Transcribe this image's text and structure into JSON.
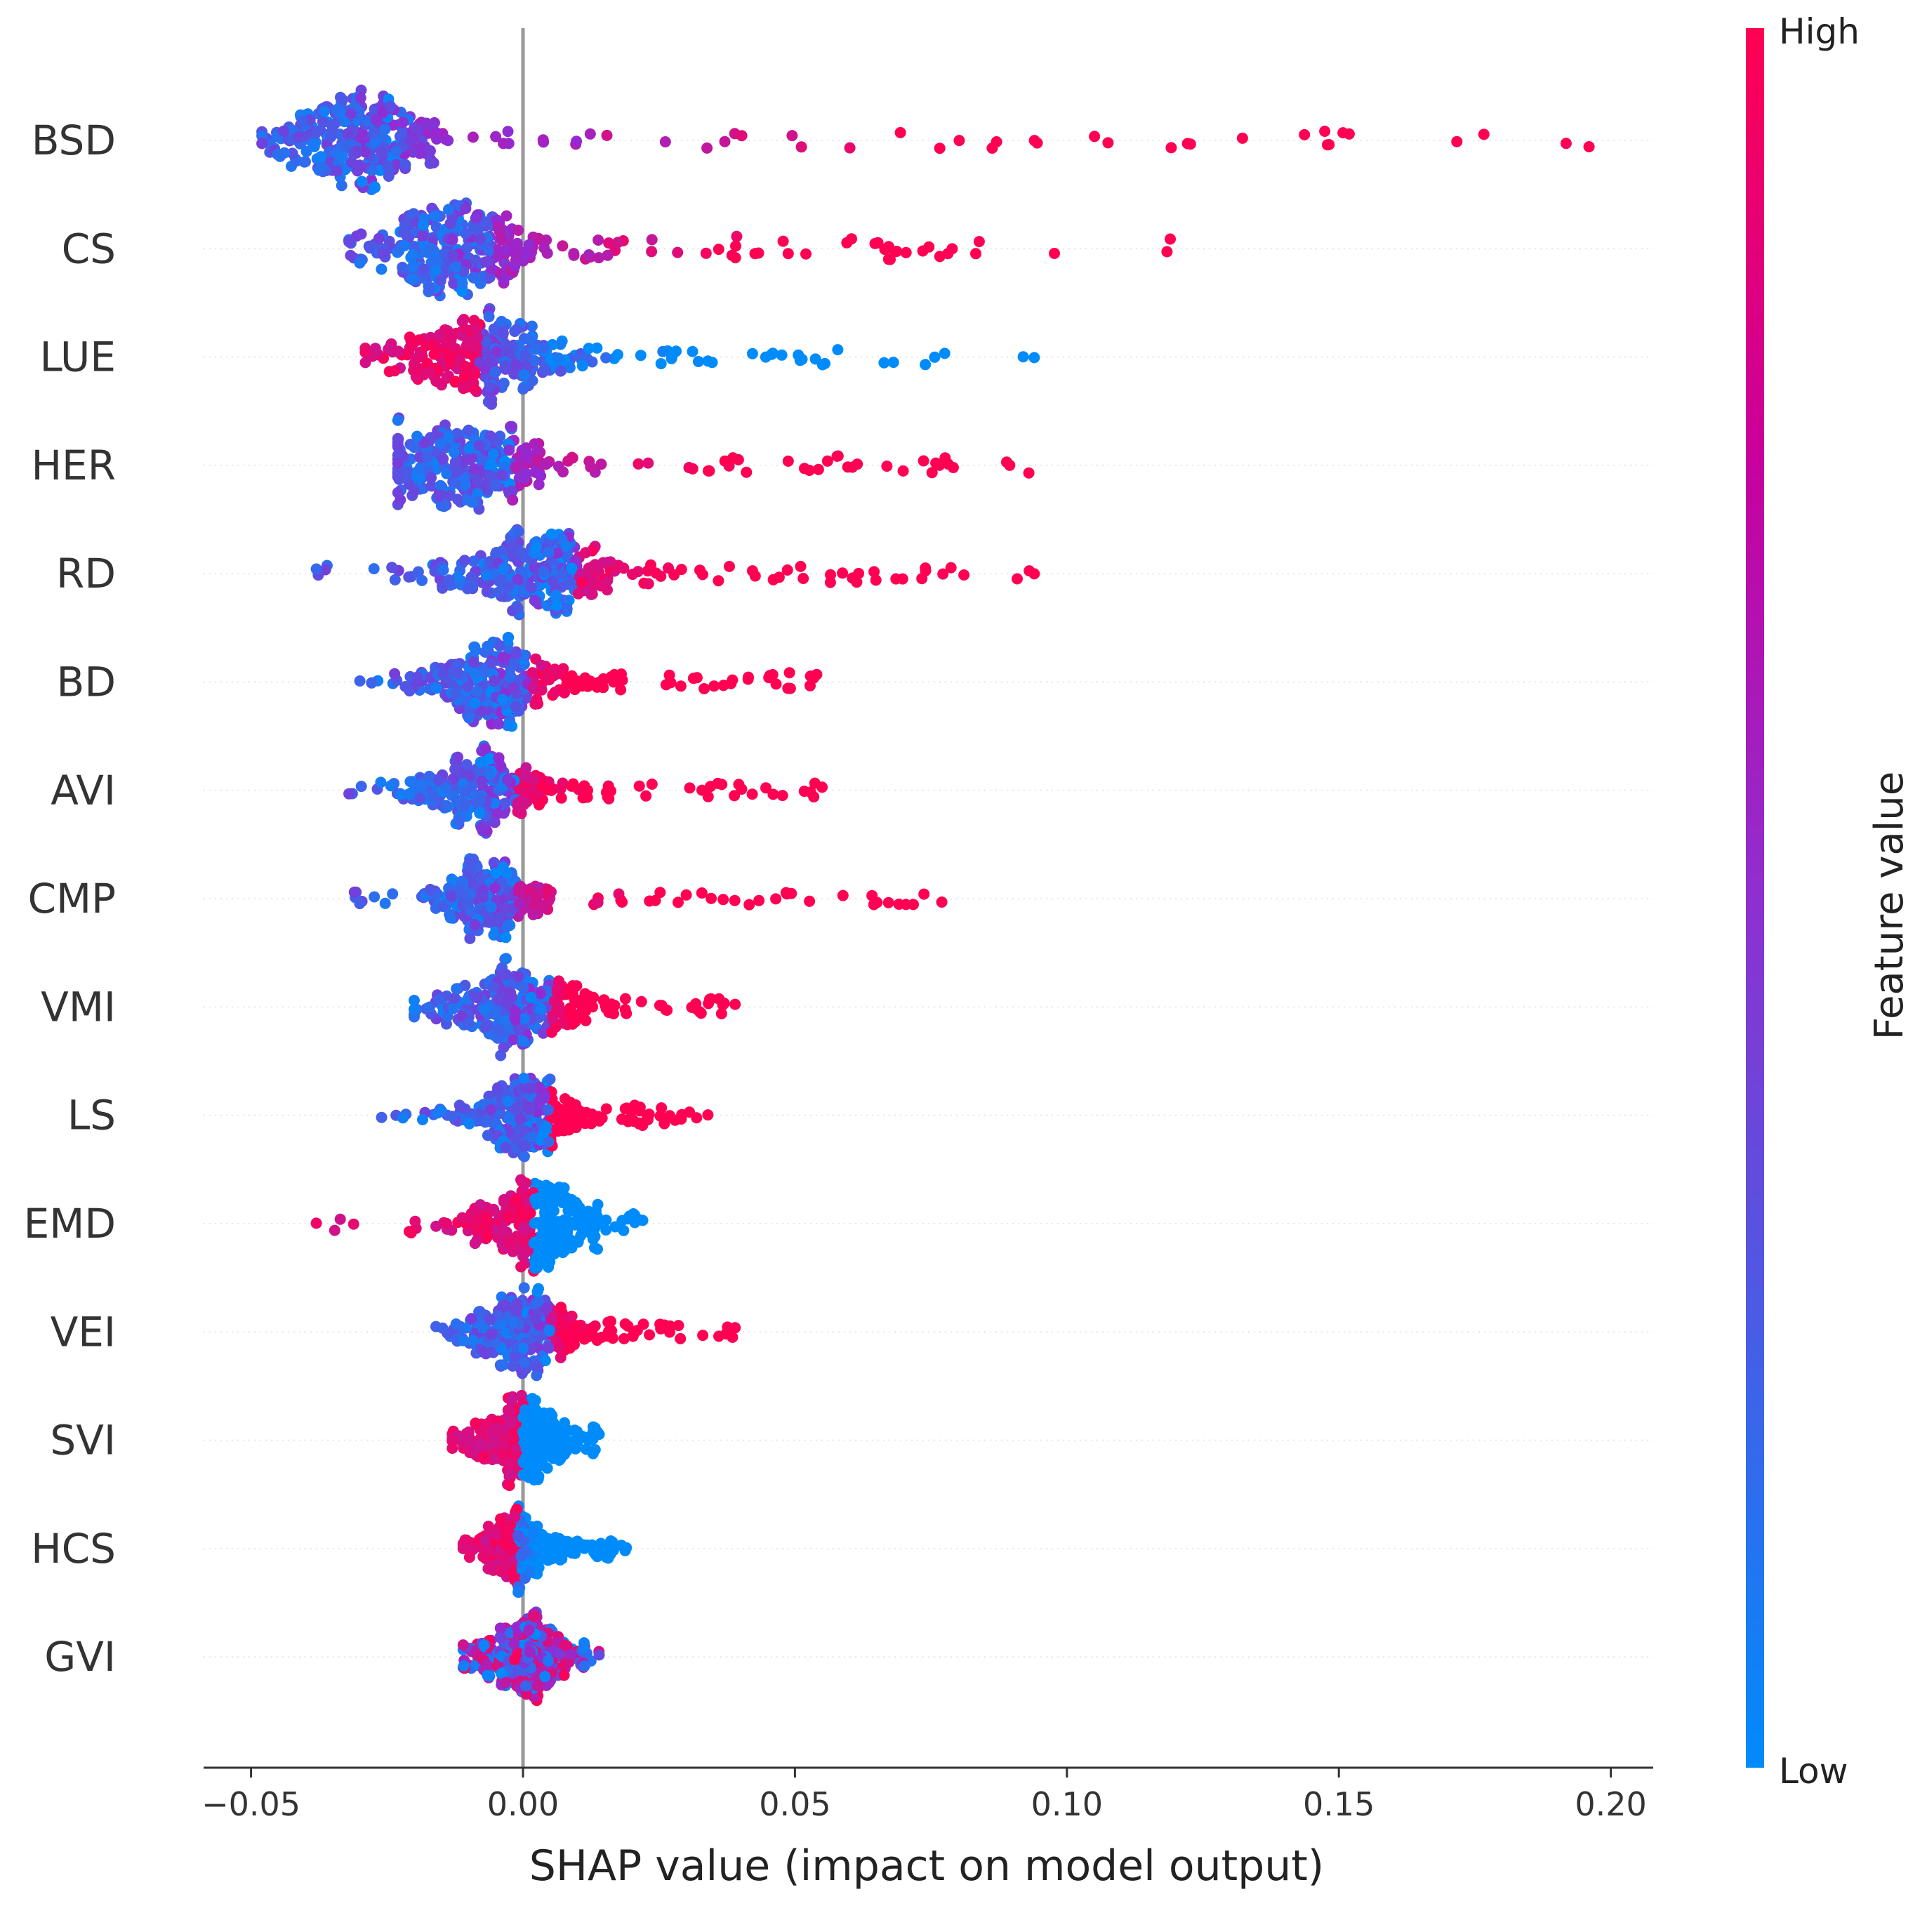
{
  "chart_data": {
    "type": "scatter",
    "subtype": "shap-beeswarm",
    "title": "",
    "xlabel": "SHAP value (impact on model output)",
    "ylabel": "",
    "xlim": [
      -0.06,
      0.208
    ],
    "xticks": [
      -0.05,
      0.0,
      0.05,
      0.1,
      0.15,
      0.2
    ],
    "xtick_labels": [
      "−0.05",
      "0.00",
      "0.05",
      "0.10",
      "0.15",
      "0.20"
    ],
    "grid": "horizontal dotted per feature",
    "legend": "colorbar right",
    "colorbar": {
      "title": "Feature value",
      "high_label": "High",
      "low_label": "Low",
      "high_color": "#ff0052",
      "mid_color": "#b300b3",
      "low_color": "#008bfb"
    },
    "features": [
      {
        "name": "BSD",
        "min": -0.048,
        "max": 0.196,
        "mode": -0.03,
        "width": 0.009,
        "spread": 0.6,
        "trend": "high_right"
      },
      {
        "name": "CS",
        "min": -0.032,
        "max": 0.119,
        "mode": -0.013,
        "width": 0.008,
        "spread": 0.55,
        "trend": "high_right"
      },
      {
        "name": "LUE",
        "min": -0.029,
        "max": 0.094,
        "mode": -0.008,
        "width": 0.008,
        "spread": 0.55,
        "trend": "low_right"
      },
      {
        "name": "HER",
        "min": -0.023,
        "max": 0.093,
        "mode": -0.01,
        "width": 0.008,
        "spread": 0.55,
        "trend": "high_right"
      },
      {
        "name": "RD",
        "min": -0.038,
        "max": 0.094,
        "mode": 0.002,
        "width": 0.008,
        "spread": 0.5,
        "trend": "high_right"
      },
      {
        "name": "BD",
        "min": -0.03,
        "max": 0.054,
        "mode": -0.006,
        "width": 0.007,
        "spread": 0.5,
        "trend": "high_right"
      },
      {
        "name": "AVI",
        "min": -0.032,
        "max": 0.055,
        "mode": -0.008,
        "width": 0.007,
        "spread": 0.5,
        "trend": "high_right"
      },
      {
        "name": "CMP",
        "min": -0.031,
        "max": 0.077,
        "mode": -0.006,
        "width": 0.005,
        "spread": 0.45,
        "trend": "high_right"
      },
      {
        "name": "VMI",
        "min": -0.02,
        "max": 0.039,
        "mode": -0.002,
        "width": 0.007,
        "spread": 0.55,
        "trend": "high_right"
      },
      {
        "name": "LS",
        "min": -0.026,
        "max": 0.034,
        "mode": 0.0,
        "width": 0.005,
        "spread": 0.45,
        "trend": "high_right"
      },
      {
        "name": "EMD",
        "min": -0.038,
        "max": 0.022,
        "mode": 0.002,
        "width": 0.006,
        "spread": 0.55,
        "trend": "low_right"
      },
      {
        "name": "VEI",
        "min": -0.016,
        "max": 0.039,
        "mode": 0.0,
        "width": 0.005,
        "spread": 0.5,
        "trend": "high_right"
      },
      {
        "name": "SVI",
        "min": -0.013,
        "max": 0.014,
        "mode": 0.0,
        "width": 0.005,
        "spread": 0.5,
        "trend": "low_right"
      },
      {
        "name": "HCS",
        "min": -0.011,
        "max": 0.019,
        "mode": -0.001,
        "width": 0.004,
        "spread": 0.5,
        "trend": "low_right"
      },
      {
        "name": "GVI",
        "min": -0.011,
        "max": 0.014,
        "mode": 0.0,
        "width": 0.005,
        "spread": 0.5,
        "trend": "mixed"
      }
    ]
  }
}
